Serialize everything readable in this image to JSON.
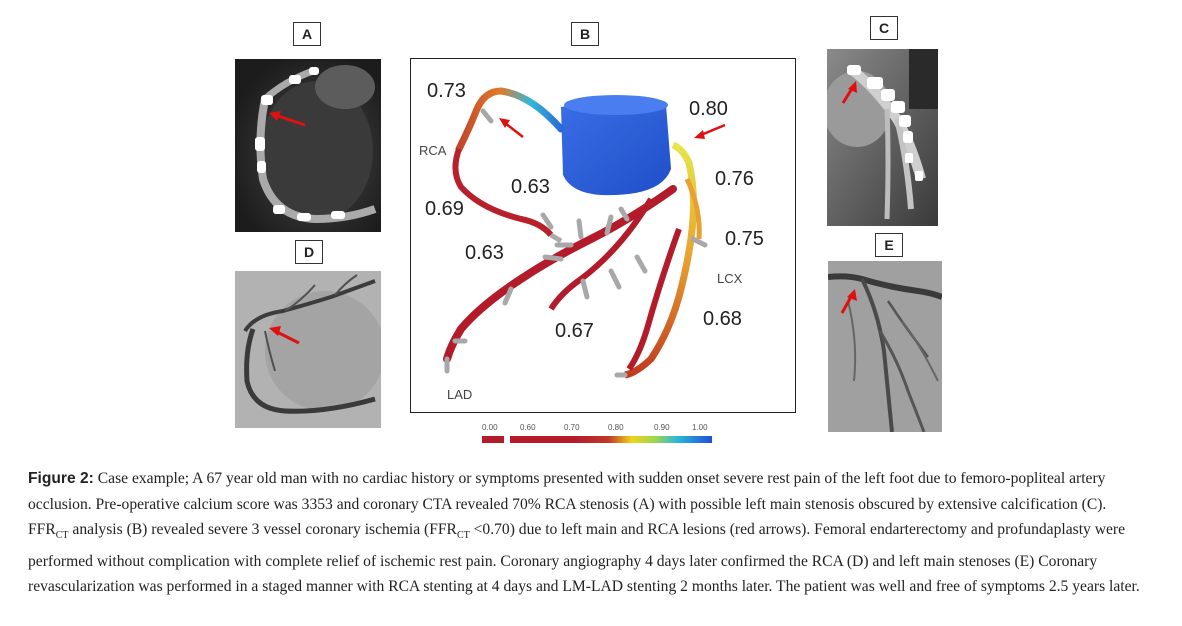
{
  "panels": {
    "a": {
      "label": "A"
    },
    "b": {
      "label": "B"
    },
    "c": {
      "label": "C"
    },
    "d": {
      "label": "D"
    },
    "e": {
      "label": "E"
    }
  },
  "ffr_model": {
    "values": {
      "rca_proximal": "0.73",
      "left_main": "0.80",
      "rca_mid": "0.69",
      "rca_branch": "0.63",
      "lad_proximal": "0.63",
      "lcx_proximal": "0.76",
      "lcx_mid": "0.75",
      "lad_mid": "0.67",
      "lcx_distal": "0.68"
    },
    "vessel_labels": {
      "rca": "RCA",
      "lcx": "LCX",
      "lad": "LAD"
    },
    "colorbar_ticks": [
      "0.00",
      "0.60",
      "0.70",
      "0.80",
      "0.90",
      "1.00"
    ],
    "colors": {
      "low": "#b31b2b",
      "mid": "#f2d21b",
      "high": "#1e4fd8",
      "aorta": "#2a5fd6"
    }
  },
  "caption": {
    "figure_label": "Figure 2:",
    "text_1": " Case example; A 67 year old man with no cardiac history or symptoms presented with sudden onset severe rest pain of the left foot due to femoro-popliteal artery occlusion. Pre-operative calcium score was 3353 and coronary CTA revealed 70% RCA stenosis (A) with possible left main stenosis obscured by extensive calcification (C). FFR",
    "sub_1": "CT",
    "text_2": " analysis (B) revealed severe 3 vessel coronary ischemia (FFR",
    "sub_2": "CT",
    "text_3": " <0.70) due to left main and RCA lesions (red arrows). Femoral endarterectomy and profundaplasty were performed without complication with complete relief of ischemic rest pain. Coronary angiography 4 days later confirmed the RCA (D) and left main stenoses (E) Coronary revascularization was performed in a staged manner with RCA stenting at 4 days and LM-LAD stenting 2 months later. The patient was well and free of symptoms 2.5 years later."
  }
}
